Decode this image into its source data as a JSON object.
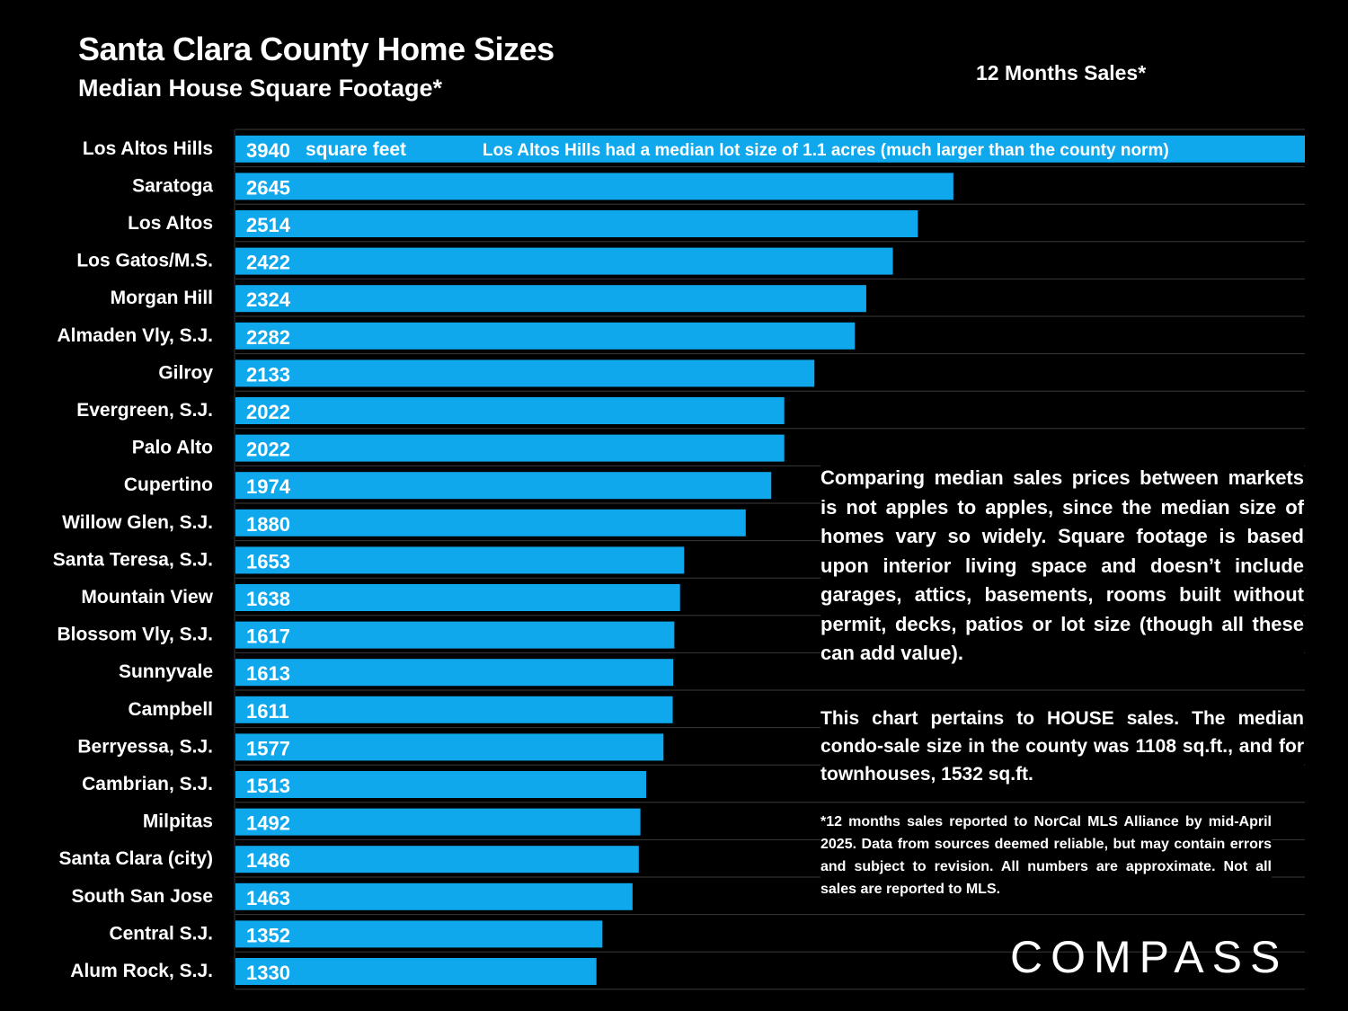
{
  "header": {
    "title": "Santa Clara County Home Sizes",
    "subtitle": "Median House Square Footage*",
    "period": "12 Months Sales*"
  },
  "chart_data": {
    "type": "bar",
    "orientation": "horizontal",
    "title": "Santa Clara County Home Sizes",
    "subtitle": "Median House Square Footage*",
    "xlabel": "",
    "ylabel": "",
    "unit_label": "square feet",
    "xlim": [
      0,
      3940
    ],
    "grid": true,
    "bar_color": "#0fa8ec",
    "categories": [
      "Los Altos Hills",
      "Saratoga",
      "Los Altos",
      "Los Gatos/M.S.",
      "Morgan Hill",
      "Almaden Vly, S.J.",
      "Gilroy",
      "Evergreen, S.J.",
      "Palo Alto",
      "Cupertino",
      "Willow Glen, S.J.",
      "Santa Teresa, S.J.",
      "Mountain View",
      "Blossom Vly, S.J.",
      "Sunnyvale",
      "Campbell",
      "Berryessa, S.J.",
      "Cambrian, S.J.",
      "Milpitas",
      "Santa Clara (city)",
      "South San Jose",
      "Central S.J.",
      "Alum Rock, S.J."
    ],
    "values": [
      3940,
      2645,
      2514,
      2422,
      2324,
      2282,
      2133,
      2022,
      2022,
      1974,
      1880,
      1653,
      1638,
      1617,
      1613,
      1611,
      1577,
      1513,
      1492,
      1486,
      1463,
      1352,
      1330
    ],
    "annotation": "Los Altos Hills had a median lot size of 1.1 acres (much larger than the county norm)"
  },
  "notes": {
    "comparison": "Comparing median sales prices between markets is not apples to apples, since the median size of homes vary so widely. Square footage is based upon interior living space and doesn’t include garages, attics, basements, rooms built without permit, decks, patios or lot size (though all these can add value).",
    "house_sales": "This chart pertains to HOUSE sales. The median condo-sale size in the county was 1108 sq.ft., and for townhouses, 1532 sq.ft.",
    "footnote": "*12 months sales reported to NorCal MLS Alliance by mid-April 2025. Data from sources deemed reliable, but may contain errors and subject to revision. All numbers are approximate. Not all sales are reported to MLS."
  },
  "logo": "COMPASS"
}
